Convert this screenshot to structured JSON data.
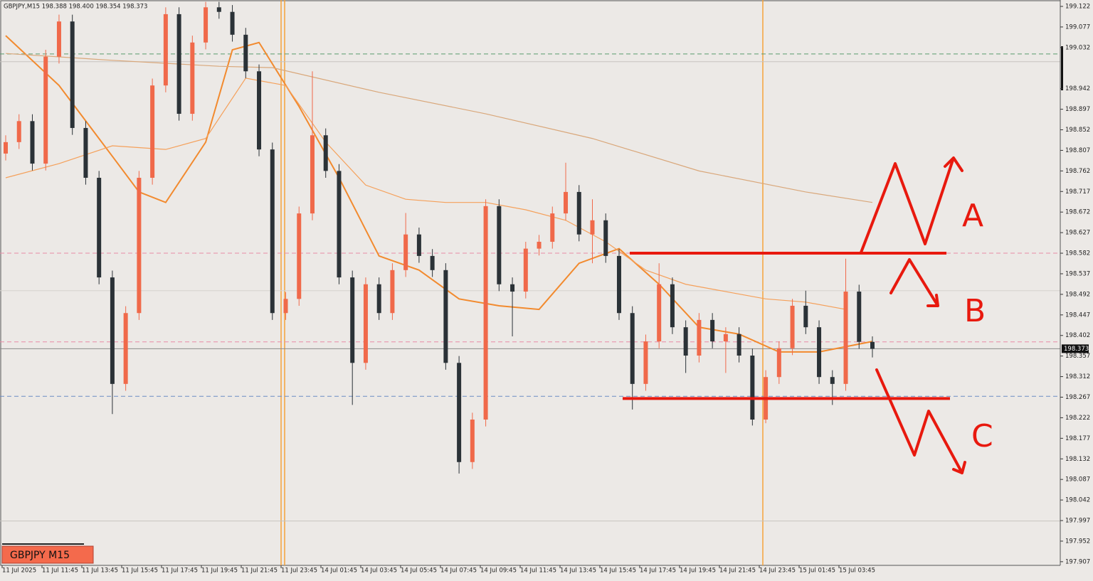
{
  "chart_data": {
    "type": "candlestick",
    "title": "GBPJPY,M15 198.388 198.400 198.354 198.373",
    "symbol_label": "GBPJPY M15",
    "current_price": 198.373,
    "ylim": [
      197.899,
      199.136
    ],
    "yticks": [
      199.122,
      199.077,
      199.032,
      198.942,
      198.897,
      198.852,
      198.807,
      198.762,
      198.717,
      198.672,
      198.627,
      198.582,
      198.537,
      198.492,
      198.447,
      198.402,
      198.357,
      198.312,
      198.267,
      198.222,
      198.177,
      198.132,
      198.087,
      198.042,
      197.997,
      197.952,
      197.907
    ],
    "x_labels": [
      "11 Jul 2025",
      "11 Jul 11:45",
      "11 Jul 13:45",
      "11 Jul 15:45",
      "11 Jul 17:45",
      "11 Jul 19:45",
      "11 Jul 21:45",
      "11 Jul 23:45",
      "14 Jul 01:45",
      "14 Jul 03:45",
      "14 Jul 05:45",
      "14 Jul 07:45",
      "14 Jul 09:45",
      "14 Jul 11:45",
      "14 Jul 13:45",
      "14 Jul 15:45",
      "14 Jul 17:45",
      "14 Jul 19:45",
      "14 Jul 21:45",
      "14 Jul 23:45",
      "15 Jul 01:45",
      "15 Jul 03:45"
    ],
    "up_color": "#f0694a",
    "down_color": "#2b3237",
    "open": [
      198.8,
      198.825,
      198.871,
      198.778,
      199.012,
      199.089,
      198.856,
      198.747,
      198.529,
      198.296,
      198.451,
      198.747,
      198.949,
      199.105,
      198.887,
      199.043,
      199.12,
      199.11,
      199.06,
      198.98,
      198.809,
      198.451,
      198.482,
      198.669,
      198.84,
      198.762,
      198.529,
      198.342,
      198.514,
      198.451,
      198.545,
      198.623,
      198.576,
      198.545,
      198.342,
      198.125,
      198.218,
      198.685,
      198.514,
      198.498,
      198.592,
      198.607,
      198.669,
      198.716,
      198.623,
      198.654,
      198.576,
      198.451,
      198.296,
      198.389,
      198.514,
      198.42,
      198.358,
      198.436,
      198.389,
      198.405,
      198.358,
      198.218,
      198.311,
      198.374,
      198.467,
      198.42,
      198.311,
      198.296,
      198.498,
      198.388
    ],
    "high": [
      198.84,
      198.886,
      198.886,
      199.027,
      199.104,
      199.104,
      198.871,
      198.762,
      198.544,
      198.466,
      198.762,
      198.964,
      199.12,
      199.12,
      199.058,
      199.132,
      199.132,
      199.125,
      199.075,
      198.995,
      198.824,
      198.497,
      198.684,
      198.98,
      198.855,
      198.777,
      198.544,
      198.529,
      198.529,
      198.56,
      198.67,
      198.638,
      198.591,
      198.56,
      198.357,
      198.233,
      198.7,
      198.7,
      198.529,
      198.607,
      198.622,
      198.684,
      198.78,
      198.731,
      198.7,
      198.669,
      198.591,
      198.466,
      198.404,
      198.56,
      198.529,
      198.435,
      198.451,
      198.451,
      198.42,
      198.42,
      198.373,
      198.326,
      198.389,
      198.482,
      198.5,
      198.435,
      198.326,
      198.57,
      198.513,
      198.4
    ],
    "low": [
      198.785,
      198.81,
      198.763,
      198.763,
      198.997,
      198.841,
      198.732,
      198.514,
      198.23,
      198.281,
      198.436,
      198.732,
      198.934,
      198.872,
      198.872,
      199.028,
      199.095,
      199.045,
      198.965,
      198.794,
      198.436,
      198.436,
      198.467,
      198.654,
      198.747,
      198.514,
      198.25,
      198.327,
      198.436,
      198.436,
      198.53,
      198.561,
      198.53,
      198.327,
      198.1,
      198.11,
      198.203,
      198.499,
      198.4,
      198.483,
      198.577,
      198.592,
      198.654,
      198.608,
      198.56,
      198.561,
      198.436,
      198.24,
      198.281,
      198.374,
      198.405,
      198.32,
      198.343,
      198.374,
      198.32,
      198.343,
      198.205,
      198.21,
      198.296,
      198.359,
      198.405,
      198.296,
      198.25,
      198.281,
      198.373,
      198.354
    ],
    "close": [
      198.825,
      198.871,
      198.778,
      199.012,
      199.089,
      198.856,
      198.747,
      198.529,
      198.296,
      198.451,
      198.747,
      198.949,
      199.105,
      198.887,
      199.043,
      199.12,
      199.11,
      199.06,
      198.98,
      198.809,
      198.451,
      198.482,
      198.669,
      198.84,
      198.762,
      198.529,
      198.342,
      198.514,
      198.451,
      198.545,
      198.623,
      198.576,
      198.545,
      198.342,
      198.125,
      198.218,
      198.685,
      198.514,
      198.498,
      198.592,
      198.607,
      198.669,
      198.716,
      198.623,
      198.654,
      198.576,
      198.451,
      198.296,
      198.389,
      198.514,
      198.42,
      198.358,
      198.436,
      198.389,
      198.405,
      198.358,
      198.218,
      198.311,
      198.374,
      198.467,
      198.42,
      198.311,
      198.296,
      198.498,
      198.388,
      198.373
    ],
    "lines": [
      {
        "color": "#f28a2e",
        "width": 2,
        "x": [
          0,
          4,
          8,
          10,
          12,
          15,
          17,
          19,
          22,
          25,
          28,
          31,
          34,
          37,
          40,
          43,
          46,
          49,
          52,
          55,
          58,
          61,
          65
        ],
        "values": [
          199.058,
          198.949,
          198.794,
          198.716,
          198.693,
          198.825,
          199.027,
          199.043,
          198.903,
          198.747,
          198.576,
          198.545,
          198.482,
          198.467,
          198.459,
          198.56,
          198.592,
          198.514,
          198.42,
          198.405,
          198.366,
          198.366,
          198.389
        ]
      },
      {
        "color": "#f5a05a",
        "width": 1.2,
        "x": [
          0,
          4,
          8,
          12,
          15,
          18,
          21,
          24,
          27,
          30,
          33,
          36,
          39,
          42,
          45,
          48,
          51,
          54,
          57,
          60,
          63
        ],
        "values": [
          198.747,
          198.778,
          198.817,
          198.809,
          198.833,
          198.965,
          198.949,
          198.825,
          198.731,
          198.7,
          198.693,
          198.693,
          198.677,
          198.654,
          198.607,
          198.545,
          198.514,
          198.498,
          198.482,
          198.475,
          198.459
        ]
      },
      {
        "color": "#d9a77a",
        "width": 1.2,
        "x": [
          0,
          8,
          16,
          20,
          28,
          36,
          44,
          52,
          60,
          65
        ],
        "values": [
          199.019,
          199.004,
          198.991,
          198.988,
          198.934,
          198.887,
          198.833,
          198.762,
          198.716,
          198.693
        ]
      }
    ],
    "levels": [
      {
        "value": 199.018,
        "color": "#5a9a6e",
        "dash": true
      },
      {
        "value": 199.001,
        "color": "#c8c4c0",
        "dash": false
      },
      {
        "value": 198.582,
        "color": "#e88aa6",
        "dash": true
      },
      {
        "value": 198.5,
        "color": "#d6d2ce",
        "dash": false
      },
      {
        "value": 198.388,
        "color": "#e88aa6",
        "dash": true
      },
      {
        "value": 198.373,
        "color": "#8a8a8a",
        "dash": false
      },
      {
        "value": 198.269,
        "color": "#6a8cc4",
        "dash": true
      },
      {
        "value": 197.996,
        "color": "#c8c4c0",
        "dash": false
      }
    ],
    "range_top": 198.582,
    "range_bottom": 198.264,
    "annotations": [
      "A",
      "B",
      "C"
    ]
  }
}
